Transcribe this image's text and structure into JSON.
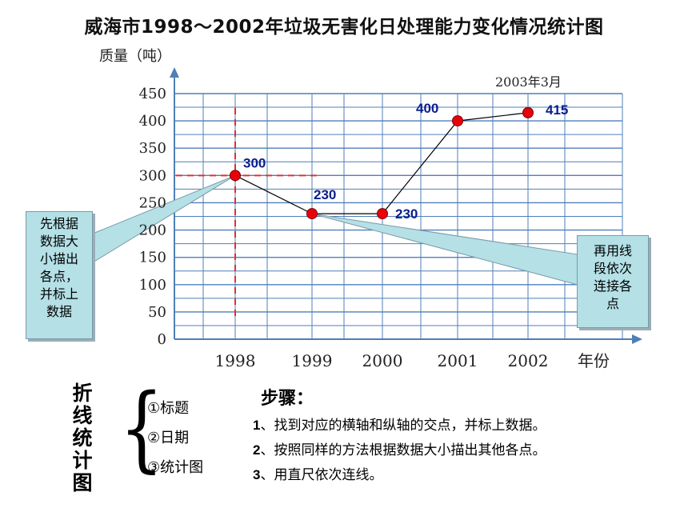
{
  "title": "威海市1998～2002年垃圾无害化日处理能力变化情况统计图",
  "chart_data": {
    "type": "line",
    "ylabel": "质量（吨）",
    "xlabel": "年份",
    "date_note": "2003年3月",
    "categories": [
      "1998",
      "1999",
      "2000",
      "2001",
      "2002"
    ],
    "values": [
      300,
      230,
      230,
      400,
      415
    ],
    "data_labels": [
      "300",
      "230",
      "230",
      "400",
      "415"
    ],
    "yticks": [
      "0",
      "50",
      "100",
      "150",
      "200",
      "250",
      "300",
      "350",
      "400",
      "450"
    ],
    "ylim": [
      0,
      450
    ],
    "grid": true,
    "point_color": "#e8000b",
    "line_color": "#000000",
    "grid_color": "#4f7fb8",
    "label_color": "#0a1e8c",
    "guide_color": "#e03030"
  },
  "callouts": {
    "left": "先根据数据大小描出各点，并标上数据",
    "right": "再用线段依次连接各点"
  },
  "side": {
    "title": "折线统计图",
    "parts": [
      "①标题",
      "②日期",
      "③统计图"
    ]
  },
  "steps": {
    "heading": "步骤：",
    "items": [
      {
        "num": "1",
        "text": "、找到对应的横轴和纵轴的交点，并标上数据。"
      },
      {
        "num": "2",
        "text": "、按照同样的方法根据数据大小描出其他各点。"
      },
      {
        "num": "3",
        "text": "、用直尺依次连线。"
      }
    ]
  }
}
